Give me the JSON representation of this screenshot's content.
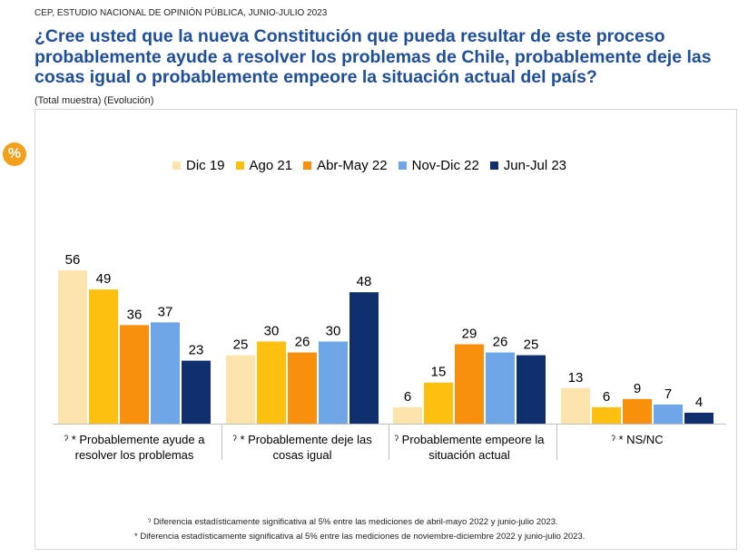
{
  "header": {
    "source": "CEP, ESTUDIO NACIONAL DE OPINIÓN PÚBLICA, JUNIO-JULIO 2023",
    "title": "¿Cree usted que la nueva Constitución que pueda resultar de este proceso probablemente ayude a resolver los problemas de Chile, probablemente deje las cosas igual o probablemente empeore la situación actual del país?",
    "subtitle": "(Total muestra) (Evolución)",
    "badge": "%"
  },
  "chart_data": {
    "type": "bar",
    "categories": [
      "ˀ * Probablemente ayude a resolver los problemas",
      "ˀ * Probablemente deje las cosas igual",
      "ˀ Probablemente empeore la situación actual",
      "ˀ * NS/NC"
    ],
    "series": [
      {
        "name": "Dic 19",
        "color": "#fde4ad",
        "values": [
          56,
          25,
          6,
          13
        ]
      },
      {
        "name": "Ago 21",
        "color": "#fdc010",
        "values": [
          49,
          30,
          15,
          6
        ]
      },
      {
        "name": "Abr-May 22",
        "color": "#f8900d",
        "values": [
          36,
          26,
          29,
          9
        ]
      },
      {
        "name": "Nov-Dic 22",
        "color": "#6ea6e8",
        "values": [
          37,
          30,
          26,
          7
        ]
      },
      {
        "name": "Jun-Jul 23",
        "color": "#0f2f6e",
        "values": [
          23,
          48,
          25,
          4
        ]
      }
    ],
    "ylim": [
      0,
      60
    ],
    "legend_position": "top",
    "data_labels": true,
    "grid": false
  },
  "footnotes": [
    "ˀ Diferencia estadísticamente significativa al 5% entre las mediciones de abril-mayo 2022 y junio-julio 2023.",
    "* Diferencia estadísticamente significativa al 5% entre las mediciones de noviembre-diciembre 2022 y junio-julio 2023."
  ]
}
